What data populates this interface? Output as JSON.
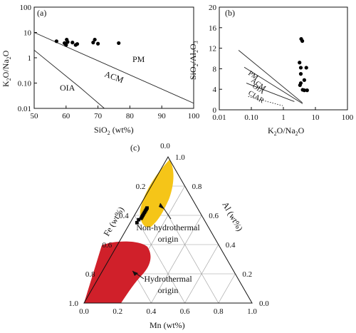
{
  "chart_data": [
    {
      "type": "scatter",
      "panel_label": "(a)",
      "xlabel_main": "SiO",
      "xlabel_sub": "2",
      "xlabel_unit": " (wt%)",
      "ylabel_main": "K",
      "ylabel_sub1": "2",
      "ylabel_mid": "O/Na",
      "ylabel_sub2": "2",
      "ylabel_end": "O",
      "xlim": [
        50,
        100
      ],
      "ylim": [
        0.01,
        100
      ],
      "y_scale": "log",
      "x_ticks": [
        50,
        60,
        70,
        80,
        90,
        100
      ],
      "x_tick_labels": [
        "50",
        "60",
        "70",
        "80",
        "90",
        "100"
      ],
      "y_ticks": [
        0.01,
        0.1,
        1,
        10,
        100
      ],
      "y_tick_labels": [
        "0.01",
        "0.10",
        "1",
        "10",
        "100"
      ],
      "region_labels": [
        "PM",
        "ACM",
        "OIA"
      ],
      "series": [
        {
          "x": [
            57,
            59.5,
            60,
            60.5,
            60.2,
            62,
            63,
            63.5,
            68.5,
            69,
            70,
            76.5
          ],
          "y": [
            4.5,
            3.8,
            3.2,
            4.2,
            5.2,
            4.0,
            3.2,
            3.5,
            4.0,
            5.2,
            3.6,
            3.8
          ]
        }
      ],
      "boundaries": [
        {
          "x": [
            50,
            100
          ],
          "y": [
            10,
            0.016
          ]
        },
        {
          "x": [
            50,
            64.5,
            72
          ],
          "y": [
            2,
            0.065,
            0.01
          ]
        }
      ]
    },
    {
      "type": "scatter",
      "panel_label": "(b)",
      "xlabel_main": "K",
      "xlabel_sub1": "2",
      "xlabel_mid": "O/Na",
      "xlabel_sub2": "2",
      "xlabel_end": "O",
      "ylabel_main": "SiO",
      "ylabel_sub1": "2",
      "ylabel_mid": "/Al",
      "ylabel_sub2": "2",
      "ylabel_mid2": "O",
      "ylabel_sub3": "3",
      "xlim": [
        0.01,
        100
      ],
      "x_scale": "log",
      "ylim": [
        0,
        20
      ],
      "x_ticks": [
        0.01,
        0.1,
        1,
        10,
        100
      ],
      "x_tick_labels": [
        "0.01",
        "0.10",
        "1",
        "10",
        "100"
      ],
      "y_ticks": [
        0,
        4,
        8,
        12,
        16,
        20
      ],
      "y_tick_labels": [
        "0",
        "4",
        "8",
        "12",
        "16",
        "20"
      ],
      "region_labels": [
        "PM",
        "ACM",
        "OIA",
        "CIAR"
      ],
      "series": [
        {
          "x": [
            3.6,
            3.9,
            3.2,
            3.5,
            5.2,
            3.5,
            4.5,
            3.5,
            3.3,
            4.0,
            4.5,
            5.5
          ],
          "y": [
            13.8,
            13.4,
            9.2,
            8.2,
            8.2,
            7.0,
            5.8,
            5.2,
            4.8,
            3.9,
            3.8,
            3.8
          ]
        }
      ],
      "boundaries": [
        {
          "x": [
            0.04,
            3.9
          ],
          "y": [
            11.6,
            1.4
          ],
          "style": "solid"
        },
        {
          "x": [
            0.06,
            4.0
          ],
          "y": [
            8.3,
            1.2
          ],
          "style": "solid"
        },
        {
          "x": [
            0.07,
            2.2
          ],
          "y": [
            5.2,
            1.6
          ],
          "style": "solid"
        },
        {
          "x": [
            0.08,
            0.95
          ],
          "y": [
            2.6,
            0.8
          ],
          "style": "dotted"
        }
      ]
    },
    {
      "type": "ternary",
      "panel_label": "(c)",
      "axis_titles": [
        "Fe (wt%)",
        "Al (wt%)",
        "Mn (wt%)"
      ],
      "fe_tick_labels": [
        "0.2",
        "0.4",
        "0.6",
        "0.8",
        "1.0"
      ],
      "al_tick_labels": [
        "0.0",
        "0.2",
        "0.4",
        "0.6",
        "0.8",
        "1.0"
      ],
      "mn_tick_labels": [
        "0.0",
        "0.2",
        "0.4",
        "0.6",
        "0.8",
        "1.0"
      ],
      "apex_labels": [
        "0.0",
        "0.0"
      ],
      "region_labels": [
        {
          "name": "Non-hydrothermal origin",
          "lines": [
            "Non-hydrothermal",
            "origin"
          ],
          "color": "#f5c518"
        },
        {
          "name": "Hydrothermal origin",
          "lines": [
            "Hydrothermal",
            "origin"
          ],
          "color": "#d0202a"
        }
      ],
      "points_fe_al_mn": [
        [
          0.3,
          0.65,
          0.05
        ],
        [
          0.31,
          0.64,
          0.05
        ],
        [
          0.32,
          0.63,
          0.05
        ],
        [
          0.33,
          0.62,
          0.05
        ],
        [
          0.34,
          0.61,
          0.05
        ],
        [
          0.35,
          0.6,
          0.05
        ],
        [
          0.36,
          0.59,
          0.05
        ],
        [
          0.37,
          0.58,
          0.05
        ],
        [
          0.39,
          0.57,
          0.04
        ],
        [
          0.41,
          0.55,
          0.04
        ]
      ]
    }
  ]
}
